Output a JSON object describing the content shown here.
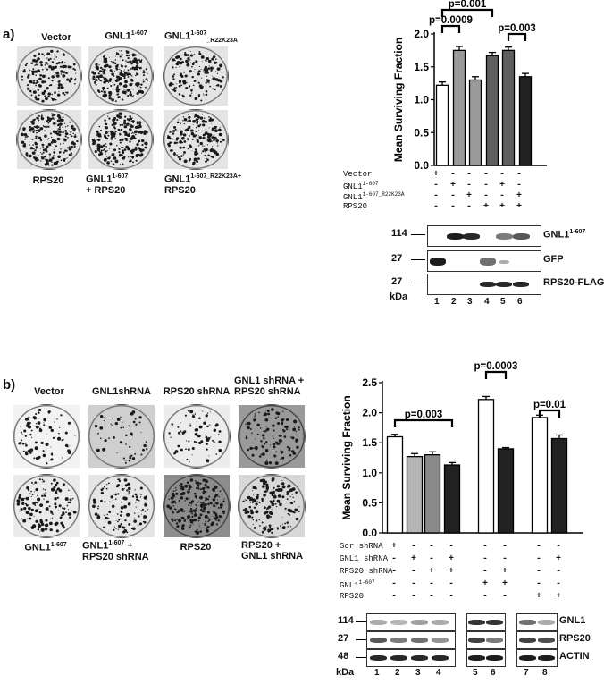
{
  "panel_a": {
    "label": "a)",
    "dish_labels": {
      "top": [
        {
          "base": "Vector",
          "sup": "",
          "sub": ""
        },
        {
          "base": "GNL1",
          "sup": "1-607",
          "sub": ""
        },
        {
          "base": "GNL1",
          "sup": "1-607",
          "sub": "_R22K23A"
        }
      ],
      "bottom": [
        {
          "line1": "RPS20",
          "line1_sup": "",
          "line2": ""
        },
        {
          "line1": "GNL1",
          "line1_sup": "1-607",
          "line2": "+ RPS20"
        },
        {
          "line1": "GNL1",
          "line1_sup": "1-607_R22K23A+",
          "line2": "RPS20"
        }
      ]
    },
    "conditions": [
      {
        "name": "Vector",
        "sup": "",
        "signs": [
          "+",
          "-",
          "-",
          "-",
          "-",
          "-"
        ]
      },
      {
        "name": "GNL1",
        "sup": "1-607",
        "signs": [
          "-",
          "+",
          "-",
          "-",
          "+",
          "-"
        ]
      },
      {
        "name": "GNL1",
        "sup": "1-607_R22K23A",
        "signs": [
          "-",
          "-",
          "+",
          "-",
          "-",
          "+"
        ]
      },
      {
        "name": "RPS20",
        "sup": "",
        "signs": [
          "-",
          "-",
          "-",
          "+",
          "+",
          "+"
        ]
      }
    ],
    "blot": {
      "markers": [
        "114",
        "27",
        "27"
      ],
      "kda": "kDa",
      "rows": [
        {
          "base": "GNL1",
          "sup": "1-607"
        },
        {
          "base": "GFP",
          "sup": ""
        },
        {
          "base": "RPS20-FLAG",
          "sup": ""
        }
      ],
      "lanes": [
        "1",
        "2",
        "3",
        "4",
        "5",
        "6"
      ]
    }
  },
  "panel_b": {
    "label": "b)",
    "dish_labels": {
      "top": [
        {
          "line1": "Vector",
          "line1_sup": "",
          "line2": ""
        },
        {
          "line1": "GNL1shRNA",
          "line1_sup": "",
          "line2": ""
        },
        {
          "line1": "RPS20 shRNA",
          "line1_sup": "",
          "line2": ""
        },
        {
          "line1": "GNL1 shRNA +",
          "line1_sup": "",
          "line2": "RPS20 shRNA"
        }
      ],
      "bottom": [
        {
          "line1": "GNL1",
          "line1_sup": "1-607",
          "line2": ""
        },
        {
          "line1": "GNL1",
          "line1_sup": "1-607",
          "line2": "+",
          "line3": "RPS20 shRNA"
        },
        {
          "line1": "RPS20",
          "line1_sup": "",
          "line2": ""
        },
        {
          "line1": "RPS20 +",
          "line1_sup": "",
          "line2": "GNL1 shRNA"
        }
      ]
    },
    "conditions": [
      {
        "name": "Scr shRNA",
        "sup": "",
        "signs": [
          "+",
          "-",
          "-",
          "-",
          "-",
          "-",
          "-",
          "-"
        ]
      },
      {
        "name": "GNL1 shRNA",
        "sup": "",
        "signs": [
          "-",
          "+",
          "-",
          "+",
          "-",
          "-",
          "-",
          "+"
        ]
      },
      {
        "name": "RPS20 shRNA",
        "sup": "",
        "signs": [
          "-",
          "-",
          "+",
          "+",
          "-",
          "+",
          "-",
          "-"
        ]
      },
      {
        "name": "GNL1",
        "sup": "1-607",
        "signs": [
          "-",
          "-",
          "-",
          "-",
          "+",
          "+",
          "-",
          "-"
        ]
      },
      {
        "name": "RPS20",
        "sup": "",
        "signs": [
          "-",
          "-",
          "-",
          "-",
          "-",
          "-",
          "+",
          "+"
        ]
      }
    ],
    "blot": {
      "markers": [
        "114",
        "27",
        "48"
      ],
      "kda": "kDa",
      "rows": [
        {
          "base": "GNL1",
          "sup": ""
        },
        {
          "base": "RPS20",
          "sup": ""
        },
        {
          "base": "ACTIN",
          "sup": ""
        }
      ],
      "lanes": [
        "1",
        "2",
        "3",
        "4",
        "5",
        "6",
        "7",
        "8"
      ]
    }
  },
  "chart_data": [
    {
      "type": "bar",
      "panel": "a",
      "categories": [
        "1",
        "2",
        "3",
        "4",
        "5",
        "6"
      ],
      "values": [
        1.22,
        1.75,
        1.3,
        1.67,
        1.75,
        1.35
      ],
      "errors": [
        0.05,
        0.06,
        0.05,
        0.05,
        0.05,
        0.05
      ],
      "bar_colors": [
        "#ffffff",
        "#9a9a9a",
        "#9a9a9a",
        "#5e5e5e",
        "#5e5e5e",
        "#222222"
      ],
      "ylabel": "Mean Surviving Fraction",
      "ylim": [
        0,
        2.0
      ],
      "yticks": [
        "0.0",
        "0.5",
        "1.0",
        "1.5",
        "2.0"
      ],
      "annotations": [
        {
          "text": "p=0.001",
          "from": 1,
          "to": 4
        },
        {
          "text": "p=0.0009",
          "from": 1,
          "to": 2
        },
        {
          "text": "p=0.003",
          "from": 5,
          "to": 6
        }
      ]
    },
    {
      "type": "bar",
      "panel": "b",
      "categories": [
        "1",
        "2",
        "3",
        "4",
        "5",
        "6",
        "7",
        "8"
      ],
      "values": [
        1.6,
        1.27,
        1.3,
        1.13,
        2.22,
        1.4,
        1.92,
        1.57
      ],
      "errors": [
        0.04,
        0.05,
        0.05,
        0.04,
        0.05,
        0.02,
        0.04,
        0.06
      ],
      "bar_colors": [
        "#ffffff",
        "#b5b5b5",
        "#8a8a8a",
        "#222222",
        "#ffffff",
        "#222222",
        "#ffffff",
        "#222222"
      ],
      "ylabel": "Mean Surviving Fraction",
      "ylim": [
        0,
        2.5
      ],
      "yticks": [
        "0.0",
        "0.5",
        "1.0",
        "1.5",
        "2.0",
        "2.5"
      ],
      "annotations": [
        {
          "text": "p=0.003",
          "from": 1,
          "to": 4
        },
        {
          "text": "p=0.0003",
          "from": 5,
          "to": 6
        },
        {
          "text": "p=0.01",
          "from": 7,
          "to": 8
        }
      ]
    }
  ]
}
